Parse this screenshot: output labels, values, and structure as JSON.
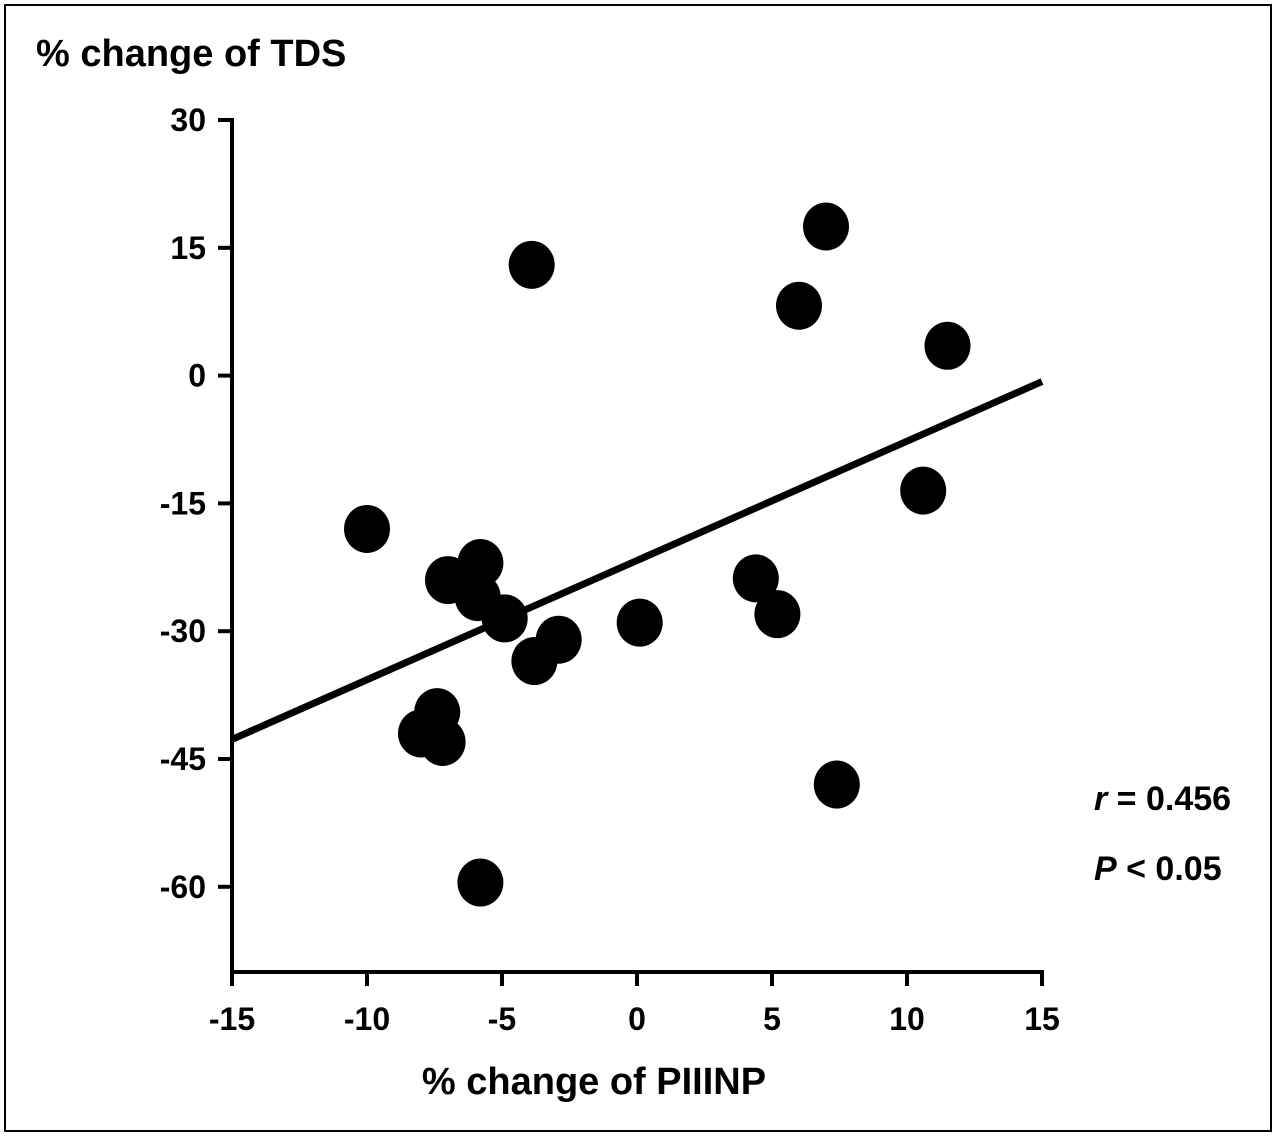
{
  "chart_data": {
    "type": "scatter",
    "title": "",
    "ylabel": "% change of TDS",
    "xlabel": "% change of PIIINP",
    "xlim": [
      -15,
      15
    ],
    "ylim": [
      -70,
      30
    ],
    "x_ticks": [
      -15,
      -10,
      -5,
      0,
      5,
      10,
      15
    ],
    "x_tick_labels": [
      "-15",
      "-10",
      "-5",
      "0",
      "5",
      "10",
      "15"
    ],
    "y_ticks": [
      30,
      15,
      0,
      -15,
      -30,
      -45,
      -60
    ],
    "y_tick_labels": [
      "30",
      "15",
      "0",
      "-15",
      "-30",
      "-45",
      "-60"
    ],
    "grid": false,
    "points": [
      {
        "x": -3.9,
        "y": 13.0
      },
      {
        "x": 7.0,
        "y": 17.5
      },
      {
        "x": 6.0,
        "y": 8.2
      },
      {
        "x": 11.5,
        "y": 3.5
      },
      {
        "x": 10.6,
        "y": -13.5
      },
      {
        "x": -10.0,
        "y": -18.0
      },
      {
        "x": -5.8,
        "y": -22.0
      },
      {
        "x": -7.0,
        "y": -24.0
      },
      {
        "x": -5.9,
        "y": -26.0
      },
      {
        "x": -4.9,
        "y": -28.5
      },
      {
        "x": -2.9,
        "y": -31.0
      },
      {
        "x": -3.8,
        "y": -33.5
      },
      {
        "x": 0.1,
        "y": -29.0
      },
      {
        "x": 4.4,
        "y": -23.8
      },
      {
        "x": 5.2,
        "y": -28.0
      },
      {
        "x": -7.4,
        "y": -39.5
      },
      {
        "x": -8.0,
        "y": -42.0
      },
      {
        "x": -7.2,
        "y": -43.0
      },
      {
        "x": 7.4,
        "y": -48.0
      },
      {
        "x": -5.8,
        "y": -59.5
      }
    ],
    "regression_line": {
      "x": [
        -15,
        15
      ],
      "y": [
        -42.7,
        -0.7
      ]
    },
    "annotations": [
      {
        "symbol": "r",
        "text": " = 0.456"
      },
      {
        "symbol": "P",
        "text": " < 0.05"
      }
    ],
    "colors": {
      "points": "#000000",
      "line": "#000000",
      "axes": "#000000"
    }
  }
}
